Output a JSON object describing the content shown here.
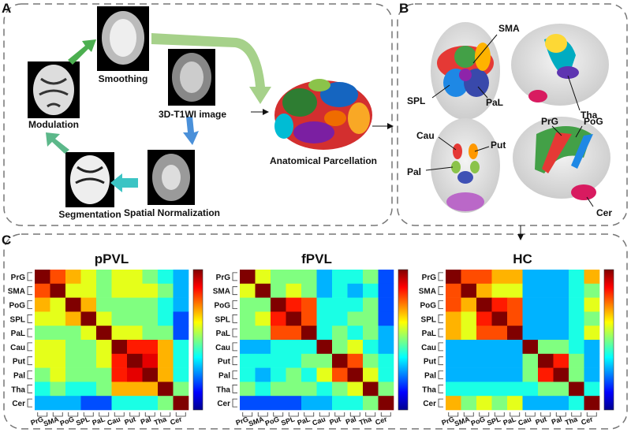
{
  "panels": {
    "a": {
      "label": "A",
      "steps": {
        "smoothing": "Smoothing",
        "t1": "3D-T1WI image",
        "modulation": "Modulation",
        "segmentation": "Segmentation",
        "normalization": "Spatial Normalization"
      },
      "parcellation": "Anatomical Parcellation"
    },
    "b": {
      "label": "B",
      "regions": [
        "SMA",
        "SPL",
        "PaL",
        "Tha",
        "Cau",
        "Put",
        "Pal",
        "PrG",
        "PoG",
        "Cer"
      ]
    },
    "c": {
      "label": "C",
      "labels": [
        "PrG",
        "SMA",
        "PoG",
        "SPL",
        "PaL",
        "Cau",
        "Put",
        "Pal",
        "Tha",
        "Cer"
      ],
      "matrices": [
        {
          "title": "pPVL",
          "values": [
            [
              1,
              0.8,
              0.7,
              0.6,
              0.5,
              0.6,
              0.6,
              0.5,
              0.4,
              0.3
            ],
            [
              0.8,
              1,
              0.6,
              0.6,
              0.5,
              0.6,
              0.6,
              0.6,
              0.5,
              0.3
            ],
            [
              0.7,
              0.6,
              1,
              0.7,
              0.5,
              0.5,
              0.5,
              0.5,
              0.4,
              0.3
            ],
            [
              0.6,
              0.6,
              0.7,
              1,
              0.6,
              0.5,
              0.5,
              0.5,
              0.4,
              0.2
            ],
            [
              0.5,
              0.5,
              0.5,
              0.6,
              1,
              0.6,
              0.6,
              0.5,
              0.5,
              0.2
            ],
            [
              0.6,
              0.6,
              0.5,
              0.5,
              0.6,
              1,
              0.85,
              0.85,
              0.7,
              0.4
            ],
            [
              0.6,
              0.6,
              0.5,
              0.5,
              0.6,
              0.85,
              1,
              0.9,
              0.7,
              0.4
            ],
            [
              0.5,
              0.6,
              0.5,
              0.5,
              0.5,
              0.85,
              0.9,
              1,
              0.7,
              0.4
            ],
            [
              0.4,
              0.5,
              0.4,
              0.4,
              0.5,
              0.7,
              0.7,
              0.7,
              1,
              0.5
            ],
            [
              0.3,
              0.3,
              0.3,
              0.2,
              0.2,
              0.4,
              0.4,
              0.4,
              0.5,
              1
            ]
          ]
        },
        {
          "title": "fPVL",
          "values": [
            [
              1,
              0.6,
              0.5,
              0.5,
              0.5,
              0.3,
              0.4,
              0.4,
              0.5,
              0.2
            ],
            [
              0.6,
              1,
              0.5,
              0.6,
              0.5,
              0.3,
              0.4,
              0.3,
              0.4,
              0.2
            ],
            [
              0.5,
              0.5,
              1,
              0.85,
              0.8,
              0.4,
              0.4,
              0.4,
              0.5,
              0.2
            ],
            [
              0.5,
              0.6,
              0.85,
              1,
              0.8,
              0.4,
              0.4,
              0.5,
              0.5,
              0.2
            ],
            [
              0.5,
              0.5,
              0.8,
              0.8,
              1,
              0.4,
              0.5,
              0.4,
              0.5,
              0.3
            ],
            [
              0.3,
              0.3,
              0.4,
              0.4,
              0.4,
              1,
              0.5,
              0.6,
              0.4,
              0.3
            ],
            [
              0.4,
              0.4,
              0.4,
              0.4,
              0.5,
              0.5,
              1,
              0.8,
              0.5,
              0.4
            ],
            [
              0.4,
              0.3,
              0.4,
              0.5,
              0.4,
              0.6,
              0.8,
              1,
              0.6,
              0.4
            ],
            [
              0.5,
              0.4,
              0.5,
              0.5,
              0.5,
              0.4,
              0.5,
              0.6,
              1,
              0.5
            ],
            [
              0.2,
              0.2,
              0.2,
              0.2,
              0.3,
              0.3,
              0.4,
              0.4,
              0.5,
              1
            ]
          ]
        },
        {
          "title": "HC",
          "values": [
            [
              1,
              0.8,
              0.8,
              0.7,
              0.7,
              0.3,
              0.3,
              0.3,
              0.4,
              0.7
            ],
            [
              0.8,
              1,
              0.7,
              0.6,
              0.6,
              0.3,
              0.3,
              0.3,
              0.4,
              0.5
            ],
            [
              0.8,
              0.7,
              1,
              0.85,
              0.8,
              0.3,
              0.3,
              0.3,
              0.4,
              0.6
            ],
            [
              0.7,
              0.6,
              0.85,
              1,
              0.8,
              0.3,
              0.3,
              0.3,
              0.4,
              0.5
            ],
            [
              0.7,
              0.6,
              0.8,
              0.8,
              1,
              0.3,
              0.3,
              0.3,
              0.4,
              0.6
            ],
            [
              0.3,
              0.3,
              0.3,
              0.3,
              0.3,
              1,
              0.5,
              0.5,
              0.4,
              0.3
            ],
            [
              0.3,
              0.3,
              0.3,
              0.3,
              0.3,
              0.5,
              1,
              0.85,
              0.5,
              0.3
            ],
            [
              0.3,
              0.3,
              0.3,
              0.3,
              0.3,
              0.5,
              0.85,
              1,
              0.5,
              0.3
            ],
            [
              0.4,
              0.4,
              0.4,
              0.4,
              0.4,
              0.4,
              0.5,
              0.5,
              1,
              0.4
            ],
            [
              0.7,
              0.5,
              0.6,
              0.5,
              0.6,
              0.3,
              0.3,
              0.3,
              0.4,
              1
            ]
          ]
        }
      ]
    }
  }
}
